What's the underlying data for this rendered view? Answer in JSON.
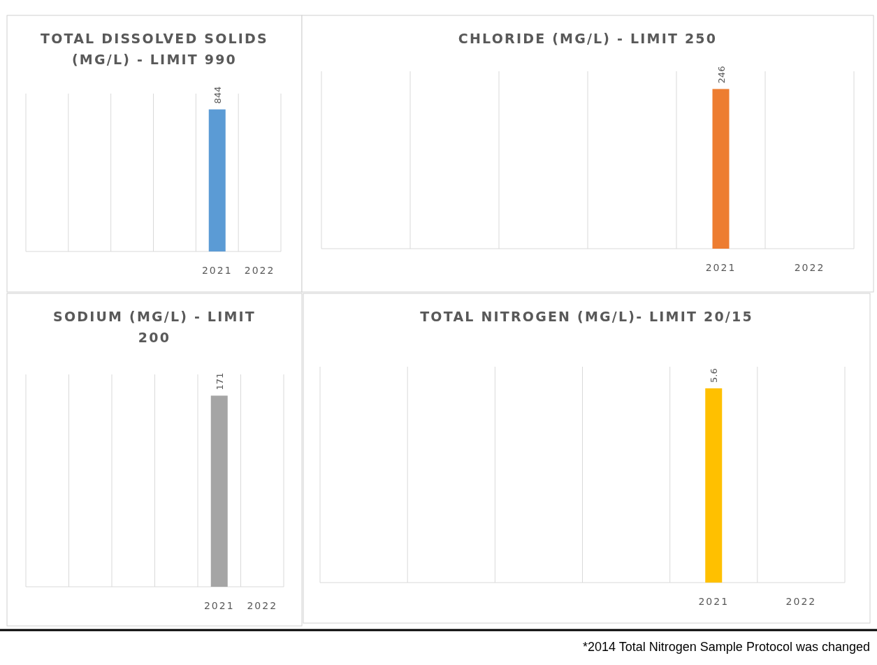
{
  "chart_data": [
    {
      "type": "bar",
      "title": "TOTAL DISSOLVED SOLIDS (MG/L) - LIMIT 990",
      "categories": [
        null,
        null,
        null,
        null,
        "2021",
        "2022"
      ],
      "series": [
        {
          "color": "#5b9bd5",
          "values": [
            null,
            null,
            null,
            null,
            844,
            null
          ]
        }
      ],
      "data_labels": true,
      "grid": "x"
    },
    {
      "type": "bar",
      "title": "CHLORIDE (MG/L) - LIMIT 250",
      "categories": [
        null,
        null,
        null,
        null,
        "2021",
        "2022"
      ],
      "series": [
        {
          "color": "#ed7d31",
          "values": [
            null,
            null,
            null,
            null,
            246,
            null
          ]
        }
      ],
      "data_labels": true,
      "grid": "x"
    },
    {
      "type": "bar",
      "title": "SODIUM (MG/L) - LIMIT 200",
      "categories": [
        null,
        null,
        null,
        null,
        "2021",
        "2022"
      ],
      "series": [
        {
          "color": "#a5a5a5",
          "values": [
            null,
            null,
            null,
            null,
            171,
            null
          ]
        }
      ],
      "data_labels": true,
      "grid": "x"
    },
    {
      "type": "bar",
      "title": "TOTAL NITROGEN (MG/L)- LIMIT 20/15",
      "categories": [
        null,
        null,
        null,
        null,
        "2021",
        "2022"
      ],
      "series": [
        {
          "color": "#ffc000",
          "values": [
            null,
            null,
            null,
            null,
            5.6,
            null
          ]
        }
      ],
      "data_labels": true,
      "grid": "x",
      "annotations": [
        "*2014 Total Nitrogen Sample Protocol was changed"
      ]
    }
  ]
}
